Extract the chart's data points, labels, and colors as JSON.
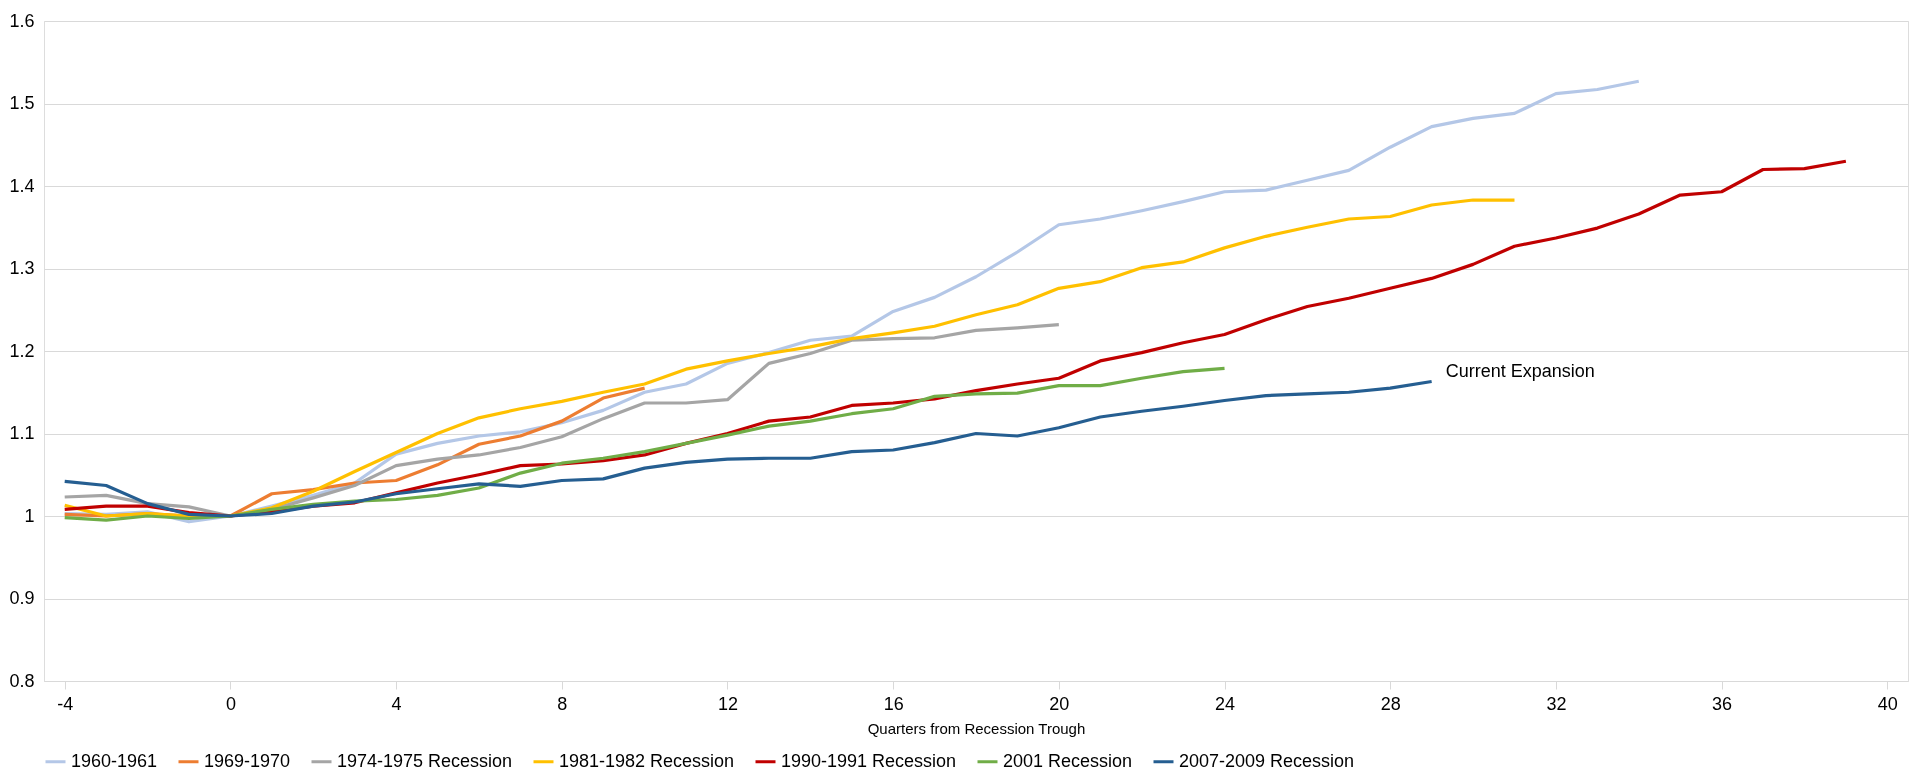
{
  "chart_data": {
    "type": "line",
    "xlabel": "Quarters from Recession Trough",
    "x": [
      -4,
      -3,
      -2,
      -1,
      0,
      1,
      2,
      3,
      4,
      5,
      6,
      7,
      8,
      9,
      10,
      11,
      12,
      13,
      14,
      15,
      16,
      17,
      18,
      19,
      20,
      21,
      22,
      23,
      24,
      25,
      26,
      27,
      28,
      29,
      30,
      31,
      32,
      33,
      34,
      35,
      36,
      37,
      38,
      39
    ],
    "series": [
      {
        "name": "1960-1961",
        "color": "#b4c7e7",
        "values": [
          1.003,
          1.002,
          1.005,
          0.993,
          1.0,
          1.012,
          1.025,
          1.04,
          1.075,
          1.088,
          1.097,
          1.102,
          1.113,
          1.128,
          1.15,
          1.16,
          1.185,
          1.198,
          1.213,
          1.218,
          1.248,
          1.265,
          1.29,
          1.32,
          1.353,
          1.36,
          1.37,
          1.381,
          1.393,
          1.395,
          1.407,
          1.419,
          1.447,
          1.472,
          1.482,
          1.488,
          1.512,
          1.517,
          1.527,
          null,
          null,
          null,
          null,
          null
        ]
      },
      {
        "name": "1969-1970",
        "color": "#ed7d31",
        "values": [
          1.002,
          1.0,
          1.003,
          1.0,
          1.0,
          1.027,
          1.032,
          1.04,
          1.043,
          1.062,
          1.087,
          1.097,
          1.115,
          1.143,
          1.155,
          null,
          null,
          null,
          null,
          null,
          null,
          null,
          null,
          null,
          null,
          null,
          null,
          null,
          null,
          null,
          null,
          null,
          null,
          null,
          null,
          null,
          null,
          null,
          null,
          null,
          null,
          null,
          null,
          null
        ]
      },
      {
        "name": "1974-1975 Recession",
        "color": "#a5a5a5",
        "values": [
          1.023,
          1.025,
          1.015,
          1.011,
          1.0,
          1.008,
          1.022,
          1.037,
          1.061,
          1.069,
          1.074,
          1.083,
          1.096,
          1.118,
          1.137,
          1.137,
          1.141,
          1.185,
          1.197,
          1.213,
          1.215,
          1.216,
          1.225,
          1.228,
          1.232,
          null,
          null,
          null,
          null,
          null,
          null,
          null,
          null,
          null,
          null,
          null,
          null,
          null,
          null,
          null,
          null,
          null,
          null,
          null
        ]
      },
      {
        "name": "1981-1982 Recession",
        "color": "#ffc000",
        "values": [
          1.013,
          1.0,
          1.003,
          1.0,
          1.0,
          1.01,
          1.03,
          1.054,
          1.077,
          1.1,
          1.119,
          1.13,
          1.139,
          1.15,
          1.16,
          1.178,
          1.188,
          1.197,
          1.205,
          1.215,
          1.222,
          1.23,
          1.244,
          1.256,
          1.276,
          1.284,
          1.301,
          1.308,
          1.325,
          1.339,
          1.35,
          1.36,
          1.363,
          1.377,
          1.383,
          1.383,
          null,
          null,
          null,
          null,
          null,
          null,
          null,
          null
        ]
      },
      {
        "name": "1990-1991 Recession",
        "color": "#c00000",
        "values": [
          1.008,
          1.012,
          1.012,
          1.004,
          1.0,
          1.005,
          1.012,
          1.016,
          1.028,
          1.04,
          1.05,
          1.061,
          1.063,
          1.067,
          1.074,
          1.088,
          1.1,
          1.115,
          1.12,
          1.134,
          1.137,
          1.142,
          1.152,
          1.16,
          1.167,
          1.188,
          1.198,
          1.21,
          1.22,
          1.238,
          1.254,
          1.264,
          1.276,
          1.288,
          1.305,
          1.327,
          1.337,
          1.349,
          1.366,
          1.389,
          1.393,
          1.42,
          1.421,
          1.43
        ]
      },
      {
        "name": "2001 Recession",
        "color": "#70ad47",
        "values": [
          0.998,
          0.995,
          1.0,
          0.997,
          1.0,
          1.008,
          1.014,
          1.018,
          1.02,
          1.025,
          1.034,
          1.052,
          1.064,
          1.07,
          1.078,
          1.088,
          1.098,
          1.109,
          1.115,
          1.124,
          1.13,
          1.145,
          1.148,
          1.149,
          1.158,
          1.158,
          1.167,
          1.175,
          1.179,
          null,
          null,
          null,
          null,
          null,
          null,
          null,
          null,
          null,
          null,
          null,
          null,
          null,
          null,
          null
        ]
      },
      {
        "name": "2007-2009 Recession",
        "color": "#255e91",
        "values": [
          1.042,
          1.037,
          1.015,
          1.002,
          1.0,
          1.003,
          1.012,
          1.017,
          1.027,
          1.033,
          1.039,
          1.036,
          1.043,
          1.045,
          1.058,
          1.065,
          1.069,
          1.07,
          1.07,
          1.078,
          1.08,
          1.089,
          1.1,
          1.097,
          1.107,
          1.12,
          1.127,
          1.133,
          1.14,
          1.146,
          1.148,
          1.15,
          1.155,
          1.163,
          null,
          null,
          null,
          null,
          null,
          null,
          null,
          null,
          null,
          null
        ]
      }
    ],
    "annotations": [
      {
        "text": "Current Expansion",
        "x": 29,
        "y": 1.163
      }
    ],
    "xlim": [
      -4.5,
      40.5
    ],
    "xticks": [
      -4,
      0,
      4,
      8,
      12,
      16,
      20,
      24,
      28,
      32,
      36,
      40
    ],
    "ylim": [
      0.8,
      1.6
    ],
    "yticks": [
      0.8,
      0.9,
      1,
      1.1,
      1.2,
      1.3,
      1.4,
      1.5,
      1.6
    ],
    "grid": "y",
    "legend": "bottom",
    "line_style": "solid",
    "marker": "none"
  }
}
